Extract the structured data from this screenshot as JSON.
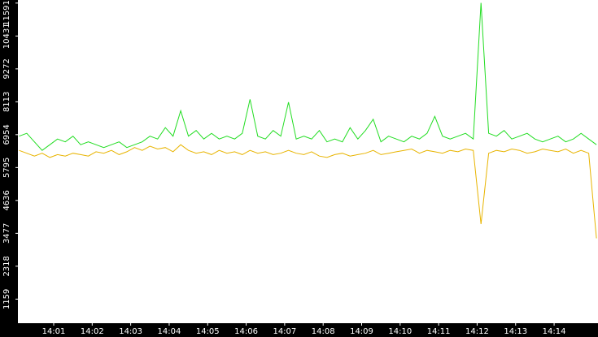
{
  "chart_data": {
    "type": "line",
    "x": [
      0.1,
      0.3,
      0.5,
      0.7,
      0.9,
      1.1,
      1.3,
      1.5,
      1.7,
      1.9,
      2.1,
      2.3,
      2.5,
      2.7,
      2.9,
      3.1,
      3.3,
      3.5,
      3.7,
      3.9,
      4.1,
      4.3,
      4.5,
      4.7,
      4.9,
      5.1,
      5.3,
      5.5,
      5.7,
      5.9,
      6.1,
      6.3,
      6.5,
      6.7,
      6.9,
      7.1,
      7.3,
      7.5,
      7.7,
      7.9,
      8.1,
      8.3,
      8.5,
      8.7,
      8.9,
      9.1,
      9.3,
      9.5,
      9.7,
      9.9,
      10.1,
      10.3,
      10.5,
      10.7,
      10.9,
      11.1,
      11.3,
      11.5,
      11.7,
      11.9,
      12.1,
      12.3,
      12.5,
      12.7,
      12.9,
      13.1,
      13.3,
      13.5,
      13.7,
      13.9,
      14.1,
      14.3,
      14.5,
      14.7,
      14.9,
      15.1
    ],
    "series": [
      {
        "color": "#22dd22",
        "values": [
          6900,
          7000,
          6700,
          6400,
          6600,
          6800,
          6700,
          6900,
          6600,
          6700,
          6600,
          6500,
          6600,
          6700,
          6500,
          6600,
          6700,
          6900,
          6800,
          7200,
          6900,
          7800,
          6900,
          7100,
          6800,
          7000,
          6800,
          6900,
          6800,
          7000,
          8200,
          6900,
          6800,
          7100,
          6900,
          8100,
          6800,
          6900,
          6800,
          7100,
          6700,
          6800,
          6700,
          7200,
          6800,
          7100,
          7500,
          6700,
          6900,
          6800,
          6700,
          6900,
          6800,
          7000,
          7600,
          6900,
          6800,
          6900,
          7000,
          6800,
          11600,
          7000,
          6900,
          7100,
          6800,
          6900,
          7000,
          6800,
          6700,
          6800,
          6900,
          6700,
          6800,
          7000,
          6800,
          6600
        ]
      },
      {
        "color": "#e8b400",
        "values": [
          6400,
          6300,
          6200,
          6300,
          6150,
          6250,
          6200,
          6300,
          6250,
          6200,
          6350,
          6300,
          6400,
          6250,
          6350,
          6500,
          6400,
          6550,
          6450,
          6500,
          6350,
          6600,
          6400,
          6300,
          6350,
          6250,
          6400,
          6300,
          6350,
          6250,
          6400,
          6300,
          6350,
          6250,
          6300,
          6400,
          6300,
          6250,
          6350,
          6200,
          6150,
          6250,
          6300,
          6200,
          6250,
          6300,
          6400,
          6250,
          6300,
          6350,
          6400,
          6450,
          6300,
          6400,
          6350,
          6300,
          6400,
          6350,
          6450,
          6400,
          3800,
          6300,
          6400,
          6350,
          6450,
          6400,
          6300,
          6350,
          6450,
          6400,
          6350,
          6450,
          6300,
          6400,
          6300,
          3300
        ]
      }
    ],
    "xlim": [
      0.07,
      15.14
    ],
    "ylim": [
      310,
      11700
    ],
    "xticks": [
      {
        "value": 1,
        "label": "14:01"
      },
      {
        "value": 2,
        "label": "14:02"
      },
      {
        "value": 3,
        "label": "14:03"
      },
      {
        "value": 4,
        "label": "14:04"
      },
      {
        "value": 5,
        "label": "14:05"
      },
      {
        "value": 6,
        "label": "14:06"
      },
      {
        "value": 7,
        "label": "14:07"
      },
      {
        "value": 8,
        "label": "14:08"
      },
      {
        "value": 9,
        "label": "14:09"
      },
      {
        "value": 10,
        "label": "14:10"
      },
      {
        "value": 11,
        "label": "14:11"
      },
      {
        "value": 12,
        "label": "14:12"
      },
      {
        "value": 13,
        "label": "14:13"
      },
      {
        "value": 14,
        "label": "14:14"
      }
    ],
    "yticks": [
      1159,
      2318,
      3477,
      4636,
      5795,
      6954,
      8113,
      9272,
      10431,
      11591
    ]
  }
}
